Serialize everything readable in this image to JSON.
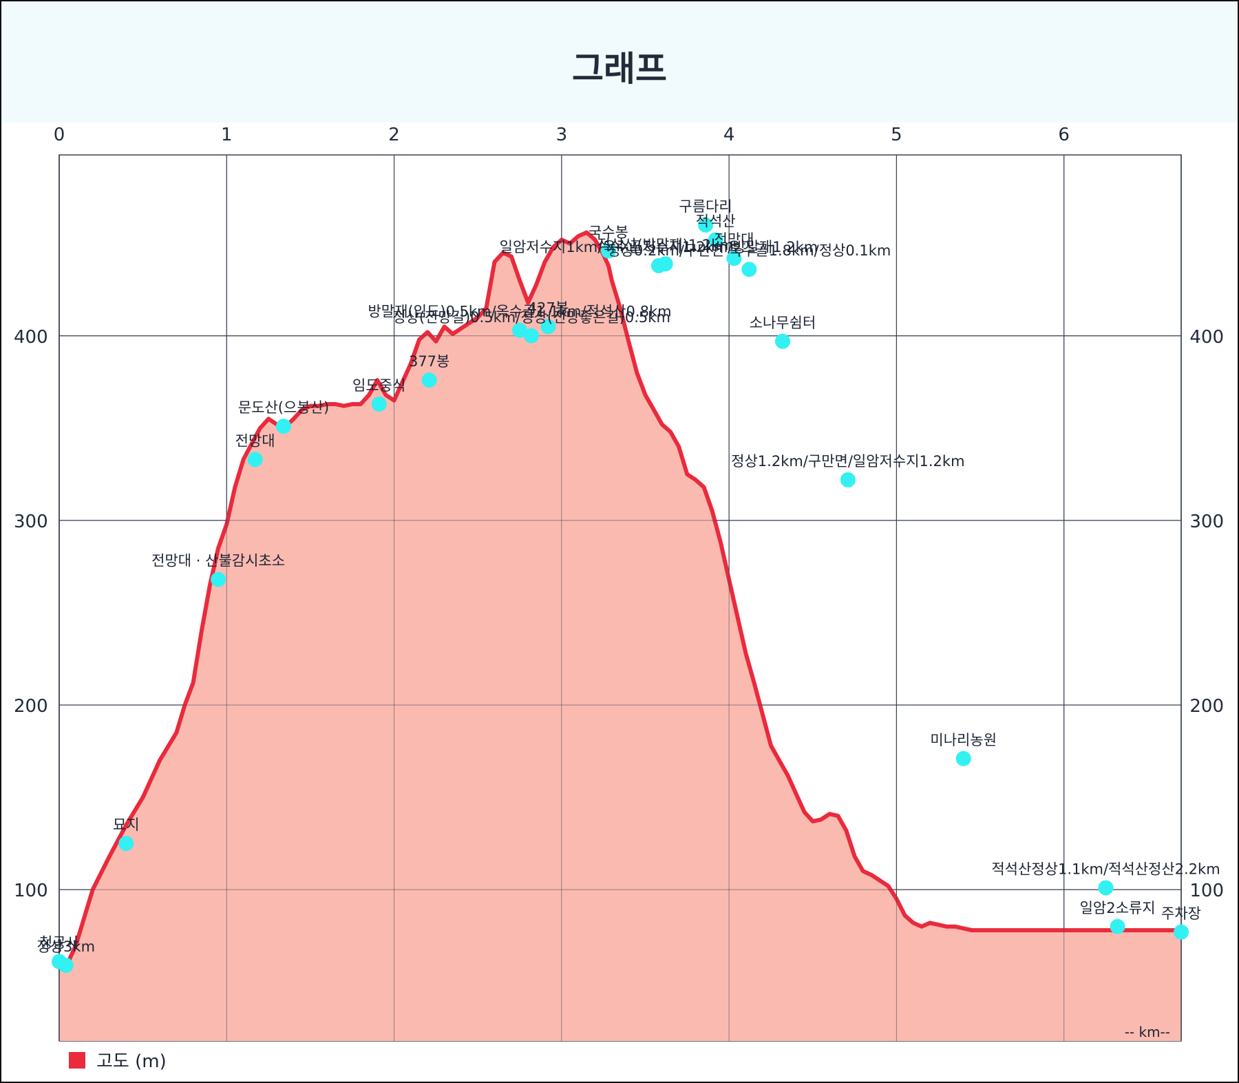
{
  "title": "그래프",
  "colors": {
    "line": "#ea2a3d",
    "fill": "#fbbab0",
    "marker": "#33f0f2",
    "grid": "#3a4252",
    "title_band": "#f1fbfd"
  },
  "legend": {
    "label": "고도 (m)"
  },
  "chart_data": {
    "type": "area",
    "title": "그래프",
    "xlabel": "-- km--",
    "ylabel": "",
    "xlim": [
      0,
      6.7
    ],
    "ylim": [
      18,
      498
    ],
    "x_ticks": [
      0,
      1,
      2,
      3,
      4,
      5,
      6
    ],
    "y_ticks": [
      100,
      200,
      300,
      400
    ],
    "grid": true,
    "legend_position": "bottom-left",
    "series": [
      {
        "name": "고도 (m)",
        "x": [
          0,
          0.05,
          0.1,
          0.2,
          0.3,
          0.4,
          0.5,
          0.6,
          0.7,
          0.75,
          0.8,
          0.85,
          0.9,
          0.95,
          1.0,
          1.05,
          1.1,
          1.17,
          1.2,
          1.25,
          1.3,
          1.34,
          1.4,
          1.45,
          1.5,
          1.55,
          1.6,
          1.65,
          1.7,
          1.75,
          1.8,
          1.85,
          1.9,
          1.95,
          2.0,
          2.05,
          2.1,
          2.15,
          2.2,
          2.25,
          2.3,
          2.35,
          2.4,
          2.45,
          2.5,
          2.55,
          2.6,
          2.65,
          2.7,
          2.75,
          2.8,
          2.85,
          2.9,
          2.95,
          3.0,
          3.05,
          3.1,
          3.15,
          3.2,
          3.25,
          3.28,
          3.3,
          3.35,
          3.4,
          3.45,
          3.5,
          3.55,
          3.6,
          3.65,
          3.7,
          3.75,
          3.8,
          3.85,
          3.9,
          3.95,
          4.0,
          4.05,
          4.1,
          4.15,
          4.2,
          4.25,
          4.3,
          4.35,
          4.4,
          4.45,
          4.5,
          4.55,
          4.6,
          4.65,
          4.7,
          4.75,
          4.8,
          4.85,
          4.9,
          4.95,
          5.0,
          5.05,
          5.1,
          5.15,
          5.2,
          5.25,
          5.3,
          5.35,
          5.4,
          5.45,
          5.5,
          5.55,
          5.6,
          5.65,
          5.7,
          5.75,
          5.8,
          5.85,
          5.9,
          5.95,
          6.0,
          6.05,
          6.1,
          6.15,
          6.2,
          6.25,
          6.3,
          6.35,
          6.4,
          6.45,
          6.5,
          6.55,
          6.6,
          6.65,
          6.7
        ],
        "y": [
          61,
          60,
          70,
          100,
          118,
          135,
          150,
          170,
          185,
          200,
          212,
          240,
          265,
          285,
          298,
          318,
          333,
          345,
          350,
          355,
          352,
          350,
          355,
          360,
          362,
          362,
          363,
          363,
          362,
          363,
          363,
          368,
          376,
          368,
          365,
          375,
          385,
          398,
          402,
          397,
          405,
          401,
          404,
          407,
          410,
          415,
          440,
          445,
          443,
          430,
          418,
          428,
          440,
          448,
          452,
          450,
          454,
          456,
          452,
          444,
          438,
          430,
          415,
          397,
          380,
          368,
          360,
          352,
          348,
          340,
          325,
          322,
          318,
          305,
          288,
          268,
          248,
          228,
          212,
          195,
          178,
          170,
          162,
          152,
          142,
          137,
          138,
          141,
          140,
          132,
          118,
          110,
          108,
          105,
          102,
          95,
          86,
          82,
          80,
          82,
          81,
          80,
          80,
          79,
          78,
          78,
          78,
          78,
          78,
          78,
          78,
          78,
          78,
          78,
          78,
          78,
          78,
          78,
          78,
          78,
          78,
          78,
          78,
          78,
          78,
          78,
          78,
          78,
          78,
          78
        ]
      }
    ],
    "waypoints": [
      {
        "x": 0.0,
        "y": 61,
        "label": "청공사"
      },
      {
        "x": 0.04,
        "y": 59,
        "label": "정상3km"
      },
      {
        "x": 0.4,
        "y": 125,
        "label": "묘지"
      },
      {
        "x": 0.95,
        "y": 268,
        "label": "전망대 · 산불감시초소"
      },
      {
        "x": 1.17,
        "y": 333,
        "label": "전망대"
      },
      {
        "x": 1.34,
        "y": 351,
        "label": "문도산(으봉산)"
      },
      {
        "x": 1.91,
        "y": 363,
        "label": "임도중식"
      },
      {
        "x": 2.21,
        "y": 376,
        "label": "377봉"
      },
      {
        "x": 2.75,
        "y": 403,
        "label": "방말재(임도)0.5km/옥수골1.1km/적석산0.8km"
      },
      {
        "x": 2.82,
        "y": 400,
        "label": "정상(전망길)0.5km/정상(전망좋은길)0.5km"
      },
      {
        "x": 2.92,
        "y": 405,
        "label": "427봉"
      },
      {
        "x": 3.28,
        "y": 446,
        "label": "국수봉"
      },
      {
        "x": 3.58,
        "y": 438,
        "label": "일암저수지1km/옥수골저수지1.2km/방말재1.2km"
      },
      {
        "x": 3.62,
        "y": 439,
        "label": "적석산(방말재)1.2km"
      },
      {
        "x": 3.86,
        "y": 460,
        "label": "구름다리"
      },
      {
        "x": 3.92,
        "y": 452,
        "label": "적석산"
      },
      {
        "x": 4.03,
        "y": 442,
        "label": "전망대"
      },
      {
        "x": 4.12,
        "y": 436,
        "label": "정상0.2km/구만면 옥수골1.8km/정상0.1km"
      },
      {
        "x": 4.32,
        "y": 397,
        "label": "소나무쉼터"
      },
      {
        "x": 4.71,
        "y": 322,
        "label": "정상1.2km/구만면/일암저수지1.2km"
      },
      {
        "x": 5.4,
        "y": 171,
        "label": "미나리농원"
      },
      {
        "x": 6.25,
        "y": 101,
        "label": "적석산정상1.1km/적석산정산2.2km"
      },
      {
        "x": 6.32,
        "y": 80,
        "label": "일암2소류지"
      },
      {
        "x": 6.7,
        "y": 77,
        "label": "주차장"
      }
    ]
  }
}
